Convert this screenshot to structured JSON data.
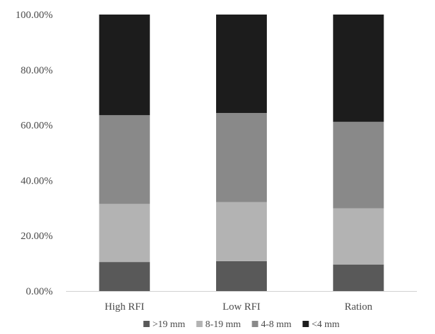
{
  "chart_data": {
    "type": "bar",
    "stacked": true,
    "categories": [
      "High RFI",
      "Low RFI",
      "Ration"
    ],
    "series": [
      {
        "name": ">19 mm",
        "color": "#595959",
        "values": [
          10.5,
          10.8,
          9.6
        ]
      },
      {
        "name": "8-19 mm",
        "color": "#b3b3b3",
        "values": [
          21.0,
          21.4,
          20.3
        ]
      },
      {
        "name": "4-8 mm",
        "color": "#898989",
        "values": [
          32.1,
          32.2,
          31.3
        ]
      },
      {
        "name": "<4 mm",
        "color": "#1c1c1c",
        "values": [
          36.4,
          35.6,
          38.8
        ]
      }
    ],
    "ylim": [
      0,
      100
    ],
    "yticks": [
      "0.00%",
      "20.00%",
      "40.00%",
      "60.00%",
      "80.00%",
      "100.00%"
    ],
    "grid": false,
    "legend_position": "bottom",
    "title": "",
    "xlabel": "",
    "ylabel": ""
  }
}
